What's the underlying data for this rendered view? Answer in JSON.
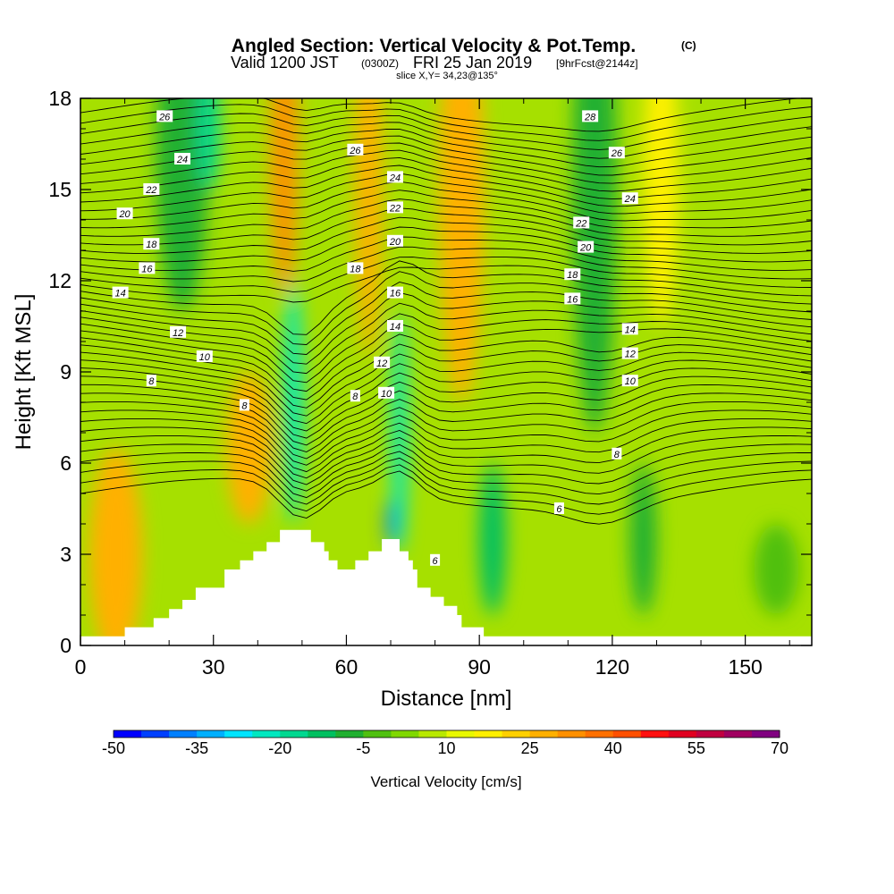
{
  "title": {
    "main": "Angled Section: Vertical Velocity & Pot.Temp.",
    "marker": "(C)",
    "valid_prefix": "Valid 1200 JST",
    "valid_z": "(0300Z)",
    "valid_date": "FRI 25 Jan 2019",
    "fcst": "[9hrFcst@2144z]",
    "slice": "slice X,Y= 34,23@135°"
  },
  "chart_data": {
    "type": "heatmap",
    "xlabel": "Distance [nm]",
    "ylabel": "Height [Kft MSL]",
    "xlim": [
      0,
      165
    ],
    "ylim": [
      0,
      18
    ],
    "x_ticks": [
      0,
      30,
      60,
      90,
      120,
      150
    ],
    "y_ticks": [
      0,
      3,
      6,
      9,
      12,
      15,
      18
    ],
    "x_tick_labels": [
      "0",
      "30",
      "60",
      "90",
      "120",
      "150"
    ],
    "y_tick_labels": [
      "0",
      "3",
      "6",
      "9",
      "12",
      "15",
      "18"
    ],
    "shaded_field": "Vertical Velocity [cm/s]",
    "contour_field": "Potential temperature (C)",
    "colorbar": {
      "label": "Vertical Velocity [cm/s]",
      "min": -50,
      "max": 70,
      "step": 5,
      "tick_labels": [
        "-50",
        "-35",
        "-20",
        "-5",
        "10",
        "25",
        "40",
        "55",
        "70"
      ],
      "colors": [
        "#0000ff",
        "#0040ff",
        "#0080ff",
        "#00b0ff",
        "#00e5ff",
        "#00e8c0",
        "#00d890",
        "#00c060",
        "#20b030",
        "#50c010",
        "#80d800",
        "#b8e800",
        "#e8f800",
        "#fff000",
        "#ffd000",
        "#ffb000",
        "#ff9000",
        "#ff7000",
        "#ff5000",
        "#ff1010",
        "#e00020",
        "#c00040",
        "#a00060",
        "#800080"
      ]
    },
    "terrain": [
      {
        "x": 0,
        "top": 0.3
      },
      {
        "x": 10,
        "top": 0.6
      },
      {
        "x": 16.5,
        "top": 0.9
      },
      {
        "x": 20,
        "top": 1.2
      },
      {
        "x": 23,
        "top": 1.5
      },
      {
        "x": 26,
        "top": 1.9
      },
      {
        "x": 32.5,
        "top": 2.5
      },
      {
        "x": 36,
        "top": 2.8
      },
      {
        "x": 39,
        "top": 3.1
      },
      {
        "x": 42,
        "top": 3.4
      },
      {
        "x": 45,
        "top": 3.8
      },
      {
        "x": 52,
        "top": 3.4
      },
      {
        "x": 55,
        "top": 3.1
      },
      {
        "x": 56,
        "top": 2.8
      },
      {
        "x": 58,
        "top": 2.5
      },
      {
        "x": 62,
        "top": 2.8
      },
      {
        "x": 65,
        "top": 3.1
      },
      {
        "x": 68,
        "top": 3.5
      },
      {
        "x": 72,
        "top": 3.1
      },
      {
        "x": 74,
        "top": 2.8
      },
      {
        "x": 75,
        "top": 2.5
      },
      {
        "x": 76,
        "top": 1.9
      },
      {
        "x": 79,
        "top": 1.6
      },
      {
        "x": 82,
        "top": 1.3
      },
      {
        "x": 85,
        "top": 1.0
      },
      {
        "x": 86,
        "top": 0.6
      },
      {
        "x": 91,
        "top": 0.3
      },
      {
        "x": 165,
        "top": 0.3
      }
    ],
    "field_patches": [
      {
        "x": 8,
        "y": 3.0,
        "rx": 6,
        "ry": 3.5,
        "value": 25
      },
      {
        "x": 38,
        "y": 6.5,
        "rx": 5,
        "ry": 2.5,
        "value": 25
      },
      {
        "x": 46,
        "y": 16.5,
        "rx": 3,
        "ry": 5,
        "value": 30
      },
      {
        "x": 65,
        "y": 15.5,
        "rx": 3,
        "ry": 6,
        "value": 25
      },
      {
        "x": 86,
        "y": 15.0,
        "rx": 5,
        "ry": 7,
        "value": 25
      },
      {
        "x": 131,
        "y": 15.5,
        "rx": 4,
        "ry": 5,
        "value": 15
      },
      {
        "x": 23,
        "y": 16.0,
        "rx": 6,
        "ry": 5,
        "value": -10
      },
      {
        "x": 29,
        "y": 17.0,
        "rx": 2.5,
        "ry": 2,
        "value": -20
      },
      {
        "x": 116,
        "y": 15.0,
        "rx": 5,
        "ry": 8,
        "value": -10
      },
      {
        "x": 48,
        "y": 8.0,
        "rx": 2.2,
        "ry": 4,
        "value": -25
      },
      {
        "x": 72,
        "y": 7.0,
        "rx": 1.8,
        "ry": 4,
        "value": -25
      },
      {
        "x": 70,
        "y": 4.0,
        "rx": 0.8,
        "ry": 0.8,
        "value": -45
      },
      {
        "x": 93,
        "y": 3.5,
        "rx": 3,
        "ry": 2.5,
        "value": -15
      },
      {
        "x": 127,
        "y": 3.5,
        "rx": 3,
        "ry": 2.5,
        "value": -10
      },
      {
        "x": 157,
        "y": 2.5,
        "rx": 5,
        "ry": 1.5,
        "value": -5
      }
    ],
    "contour_levels": [
      "6",
      "8",
      "10",
      "12",
      "14",
      "16",
      "18",
      "20",
      "22",
      "24",
      "26",
      "28"
    ],
    "contour_labels": [
      {
        "x": 19,
        "y": 17.4,
        "text": "26"
      },
      {
        "x": 23,
        "y": 16.0,
        "text": "24"
      },
      {
        "x": 16,
        "y": 15.0,
        "text": "22"
      },
      {
        "x": 10,
        "y": 14.2,
        "text": "20"
      },
      {
        "x": 16,
        "y": 13.2,
        "text": "18"
      },
      {
        "x": 15,
        "y": 12.4,
        "text": "16"
      },
      {
        "x": 9,
        "y": 11.6,
        "text": "14"
      },
      {
        "x": 22,
        "y": 10.3,
        "text": "12"
      },
      {
        "x": 28,
        "y": 9.5,
        "text": "10"
      },
      {
        "x": 16,
        "y": 8.7,
        "text": "8"
      },
      {
        "x": 37,
        "y": 7.9,
        "text": "8"
      },
      {
        "x": 62,
        "y": 16.3,
        "text": "26"
      },
      {
        "x": 71,
        "y": 15.4,
        "text": "24"
      },
      {
        "x": 71,
        "y": 14.4,
        "text": "22"
      },
      {
        "x": 71,
        "y": 13.3,
        "text": "20"
      },
      {
        "x": 62,
        "y": 12.4,
        "text": "18"
      },
      {
        "x": 71,
        "y": 11.6,
        "text": "16"
      },
      {
        "x": 71,
        "y": 10.5,
        "text": "14"
      },
      {
        "x": 68,
        "y": 9.3,
        "text": "12"
      },
      {
        "x": 69,
        "y": 8.3,
        "text": "10"
      },
      {
        "x": 62,
        "y": 8.2,
        "text": "8"
      },
      {
        "x": 115,
        "y": 17.4,
        "text": "28"
      },
      {
        "x": 121,
        "y": 16.2,
        "text": "26"
      },
      {
        "x": 124,
        "y": 14.7,
        "text": "24"
      },
      {
        "x": 113,
        "y": 13.9,
        "text": "22"
      },
      {
        "x": 114,
        "y": 13.1,
        "text": "20"
      },
      {
        "x": 111,
        "y": 12.2,
        "text": "18"
      },
      {
        "x": 111,
        "y": 11.4,
        "text": "16"
      },
      {
        "x": 124,
        "y": 10.4,
        "text": "14"
      },
      {
        "x": 124,
        "y": 9.6,
        "text": "12"
      },
      {
        "x": 124,
        "y": 8.7,
        "text": "10"
      },
      {
        "x": 121,
        "y": 6.3,
        "text": "8"
      },
      {
        "x": 108,
        "y": 4.5,
        "text": "6"
      },
      {
        "x": 80,
        "y": 2.8,
        "text": "6"
      }
    ]
  }
}
